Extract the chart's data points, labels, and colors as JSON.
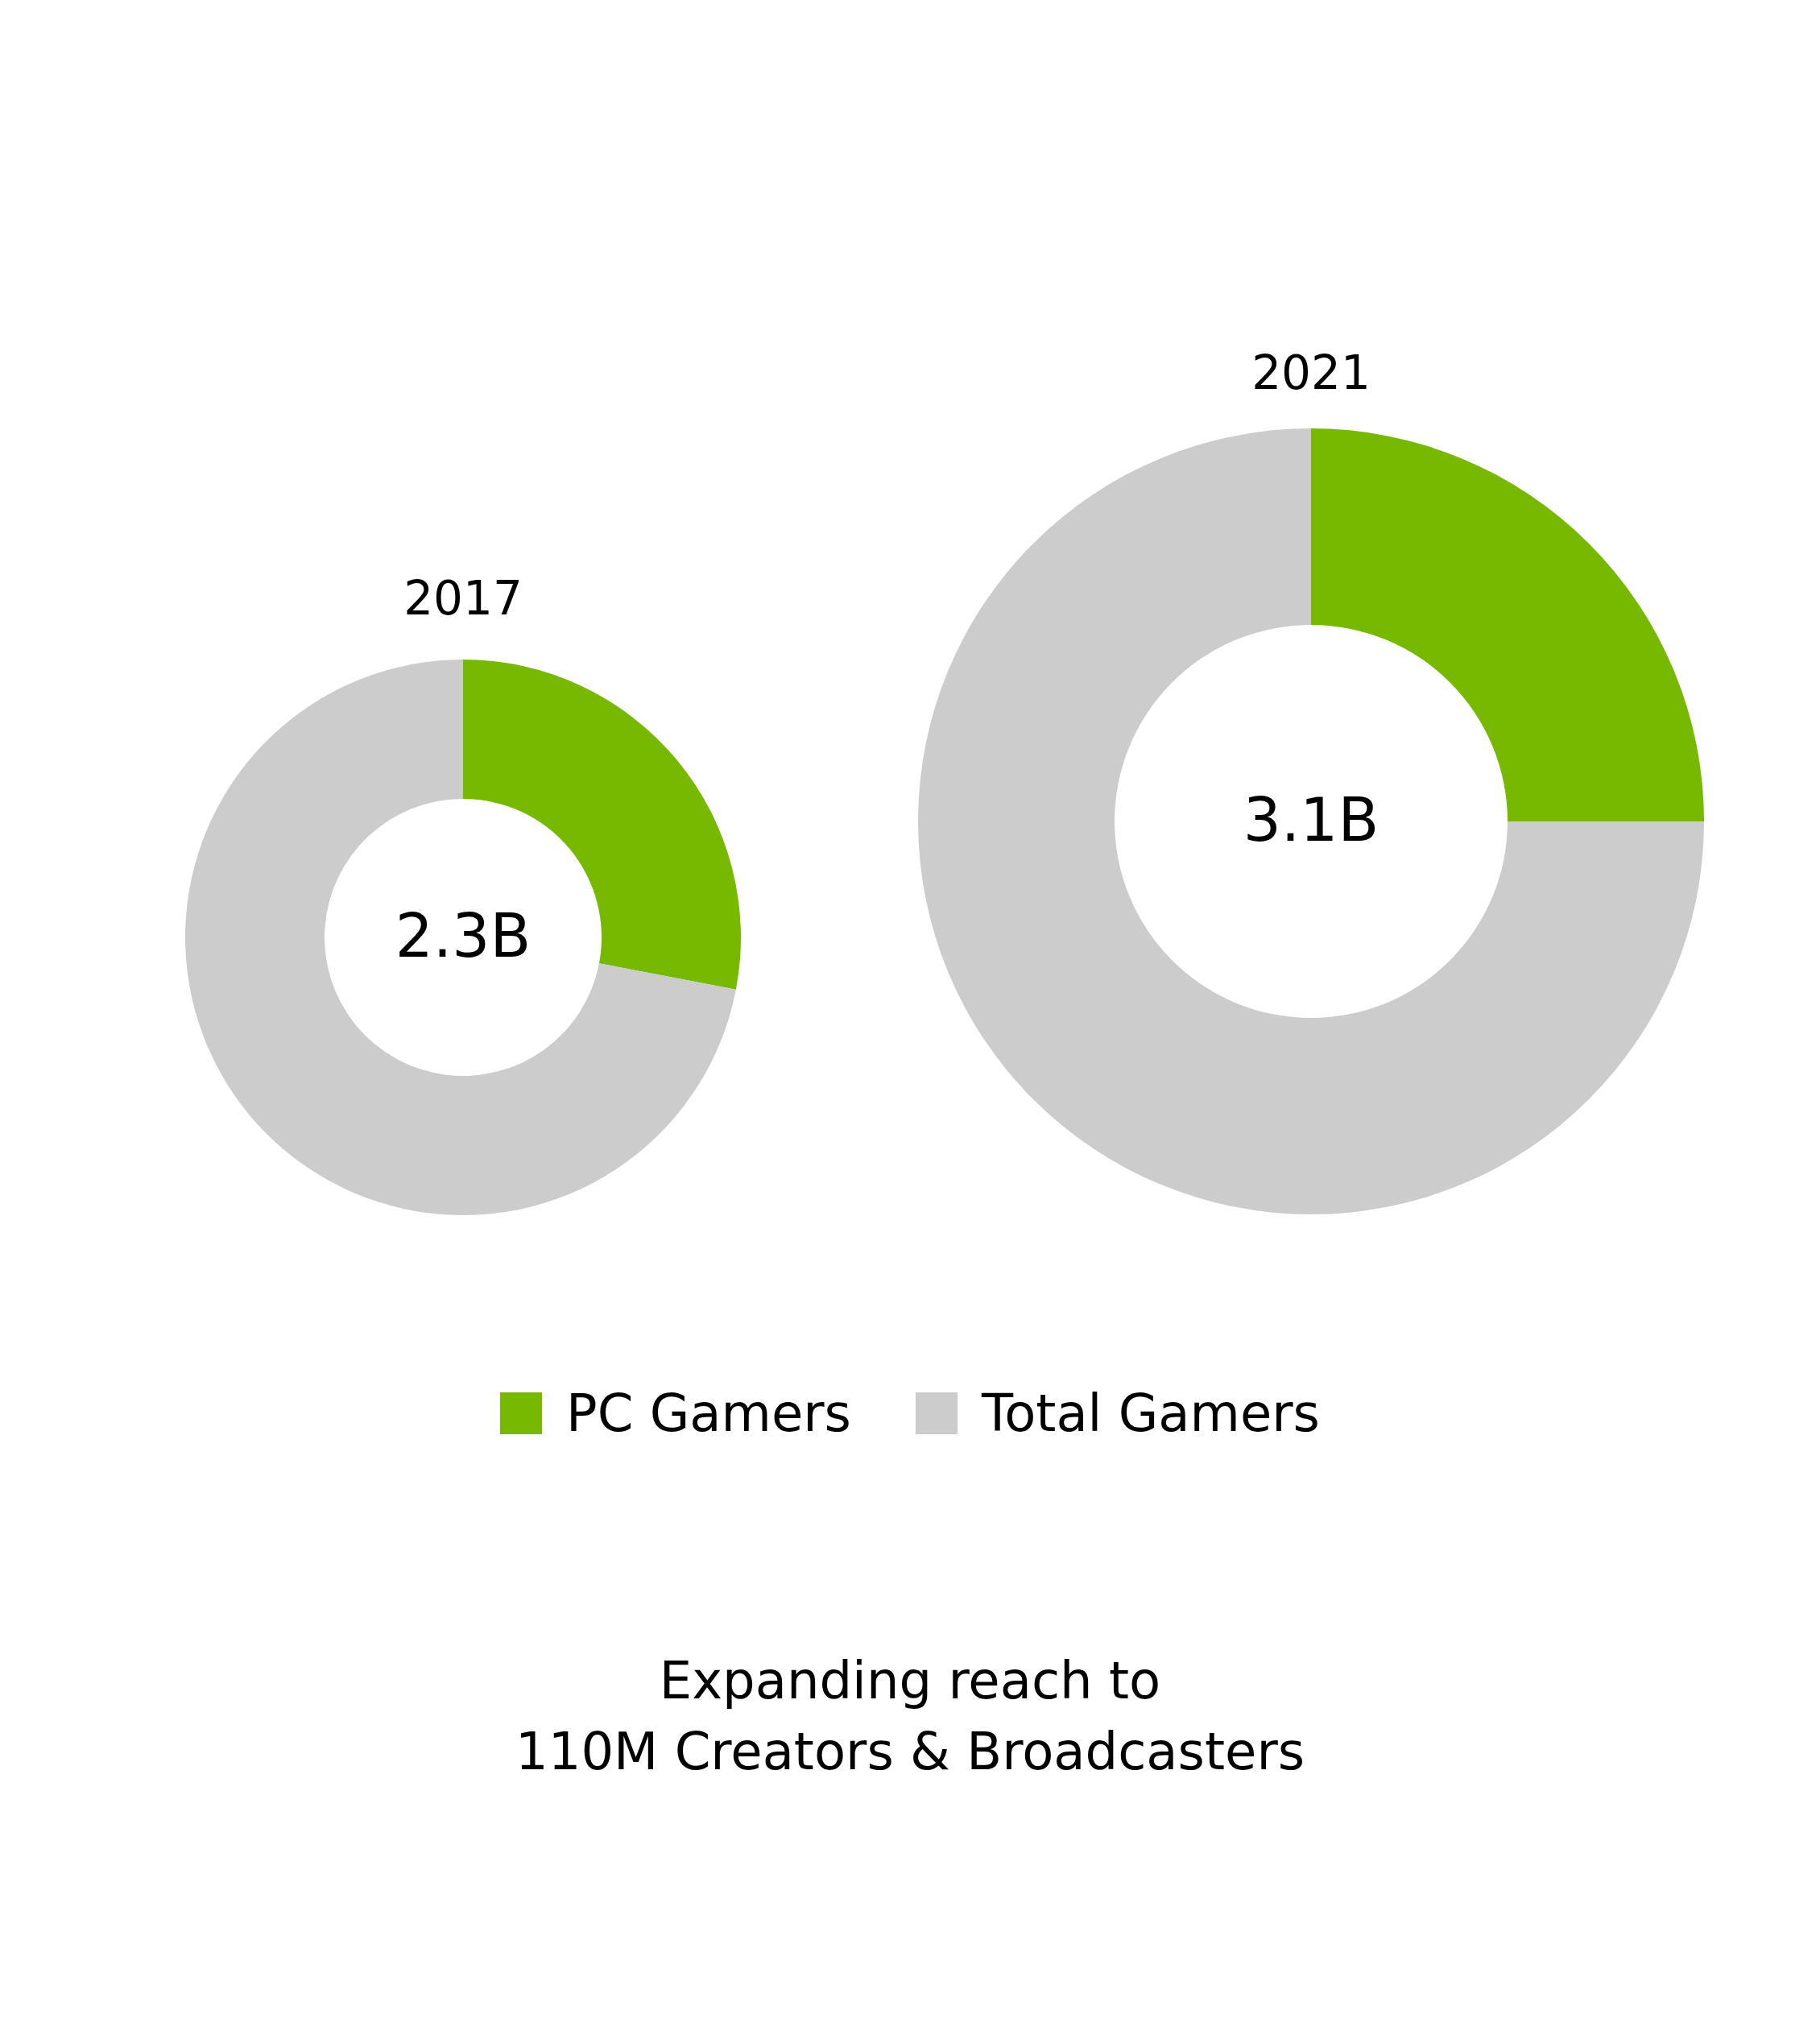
{
  "chart_data": {
    "type": "donut",
    "categories": [
      "PC Gamers",
      "Total Gamers"
    ],
    "colors": [
      "#76b900",
      "#cccccc"
    ],
    "legend": "bottom",
    "series": [
      {
        "name": "2017",
        "values": [
          28,
          72
        ]
      },
      {
        "name": "2021",
        "values": [
          25,
          75
        ]
      }
    ],
    "annotations": [
      "2.3B",
      "3.1B",
      "Expanding reach to\n110M Creators & Broadcasters"
    ]
  }
}
